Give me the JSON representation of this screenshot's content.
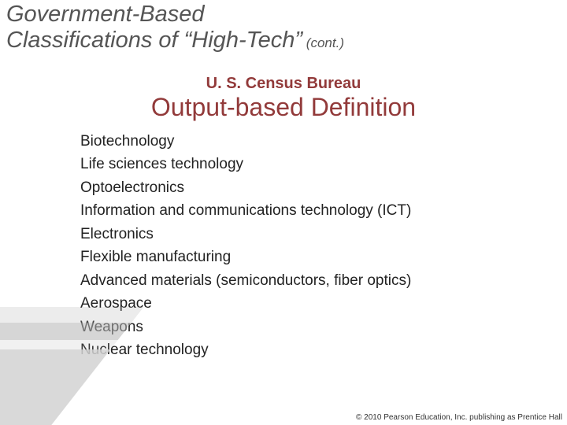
{
  "colors": {
    "background": "#ffffff",
    "title_text": "#555555",
    "heading_text": "#923a3a",
    "body_text": "#222222",
    "footer_text": "#333333",
    "stripe_light": "rgba(180,180,180,0.25)",
    "stripe_mid": "rgba(180,180,180,0.55)",
    "stripe_faint": "rgba(180,180,180,0.18)",
    "stripe_solid": "rgba(210,210,210,0.85)"
  },
  "typography": {
    "title_fontsize": 29,
    "title_style": "italic",
    "cont_fontsize": 17,
    "sub1_fontsize": 20,
    "sub1_weight": 700,
    "sub2_fontsize": 32,
    "sub2_weight": 400,
    "list_fontsize": 19,
    "footer_fontsize": 10,
    "font_family": "Segoe UI / Lucida Sans"
  },
  "title": {
    "line1": "Government-Based",
    "line2_main": "Classifications of “High-Tech”",
    "line2_cont": " (cont.)"
  },
  "subtitle": {
    "s1": "U. S. Census Bureau",
    "s2": "Output-based Definition"
  },
  "list": {
    "items": [
      "Biotechnology",
      "Life sciences technology",
      "Optoelectronics",
      "Information and communications technology (ICT)",
      "Electronics",
      "Flexible manufacturing",
      "Advanced materials (semiconductors, fiber optics)",
      "Aerospace",
      "Weapons",
      "Nuclear technology"
    ]
  },
  "footer": {
    "text": "© 2010 Pearson Education, Inc. publishing as Prentice Hall"
  }
}
